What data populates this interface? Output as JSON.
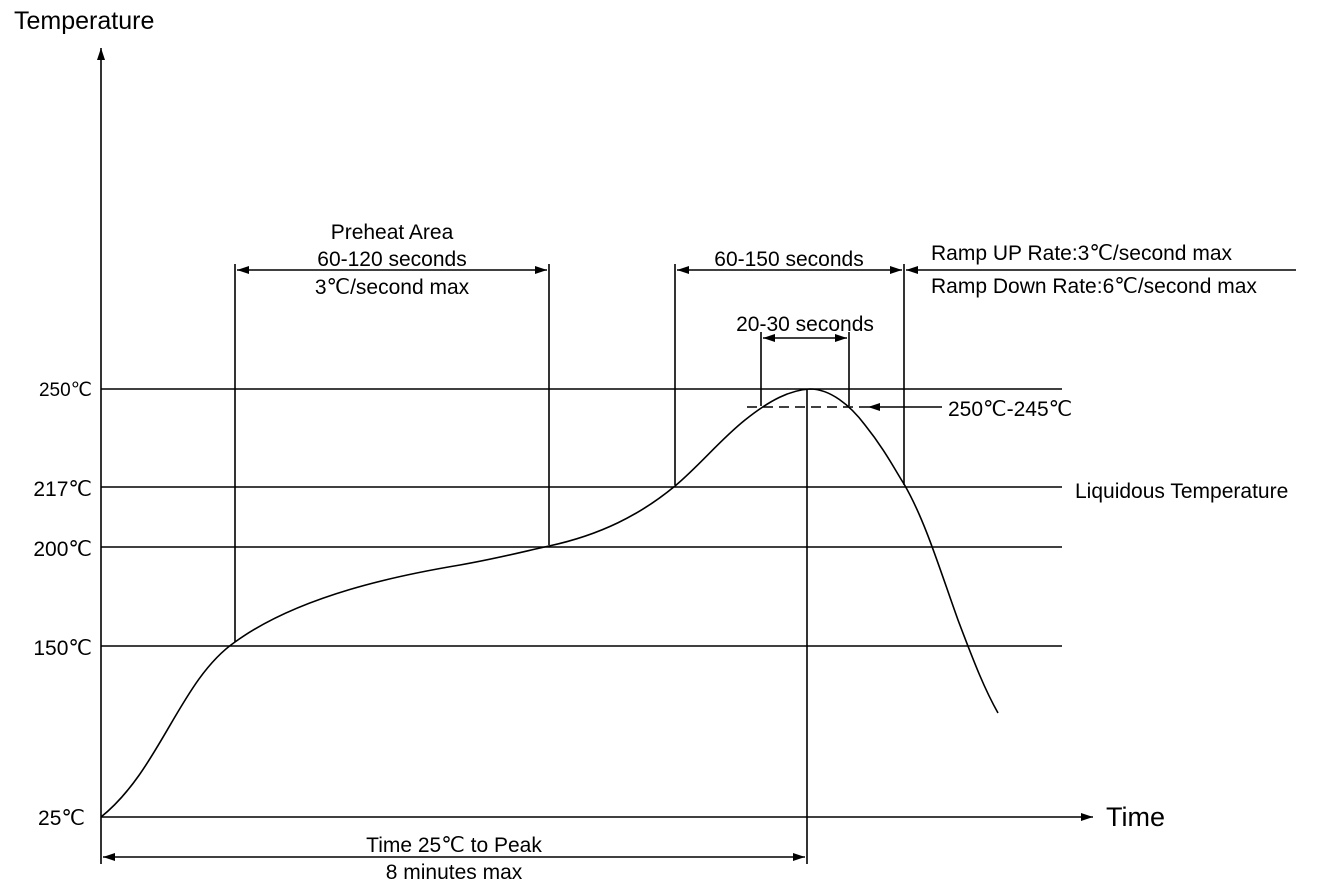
{
  "axes": {
    "y_title": "Temperature",
    "x_title": "Time"
  },
  "temperature_levels": [
    {
      "label": "250℃"
    },
    {
      "label": "217℃"
    },
    {
      "label": "200℃"
    },
    {
      "label": "150℃"
    },
    {
      "label": "25℃"
    }
  ],
  "annotations": {
    "preheat_title": "Preheat Area",
    "preheat_time": "60-120 seconds",
    "preheat_rate": "3℃/second max",
    "above_liquidous_time": "60-150 seconds",
    "peak_window_time": "20-30 seconds",
    "peak_range": "250℃-245℃",
    "liquidous": "Liquidous Temperature",
    "ramp_up": "Ramp UP Rate:3℃/second max",
    "ramp_down": "Ramp Down Rate:6℃/second max",
    "time_to_peak": "Time 25℃ to Peak",
    "time_to_peak_max": "8 minutes max"
  }
}
